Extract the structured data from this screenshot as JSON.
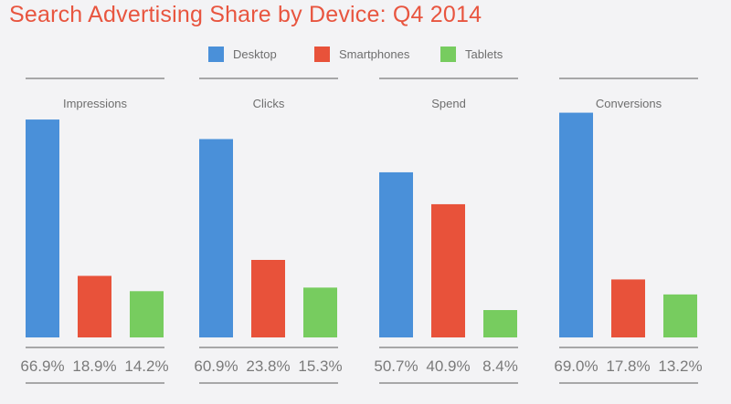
{
  "title": "Search Advertising Share by Device: Q4 2014",
  "colors": {
    "Desktop": "#4a90d9",
    "Smartphones": "#e8523a",
    "Tablets": "#77cc5f"
  },
  "legend": [
    {
      "name": "Desktop",
      "color": "#4a90d9"
    },
    {
      "name": "Smartphones",
      "color": "#e8523a"
    },
    {
      "name": "Tablets",
      "color": "#77cc5f"
    }
  ],
  "chart_data": {
    "type": "bar",
    "title": "Search Advertising Share by Device: Q4 2014",
    "legend_placement": "top-center",
    "grid": false,
    "ylim": [
      0,
      70
    ],
    "series_names": [
      "Desktop",
      "Smartphones",
      "Tablets"
    ],
    "panels": [
      {
        "label": "Impressions",
        "values": [
          66.9,
          18.9,
          14.2
        ],
        "value_labels": [
          "66.9%",
          "18.9%",
          "14.2%"
        ]
      },
      {
        "label": "Clicks",
        "values": [
          60.9,
          23.8,
          15.3
        ],
        "value_labels": [
          "60.9%",
          "23.8%",
          "15.3%"
        ]
      },
      {
        "label": "Spend",
        "values": [
          50.7,
          40.9,
          8.4
        ],
        "value_labels": [
          "50.7%",
          "40.9%",
          "8.4%"
        ]
      },
      {
        "label": "Conversions",
        "values": [
          69.0,
          17.8,
          13.2
        ],
        "value_labels": [
          "69.0%",
          "17.8%",
          "13.2%"
        ]
      }
    ]
  }
}
